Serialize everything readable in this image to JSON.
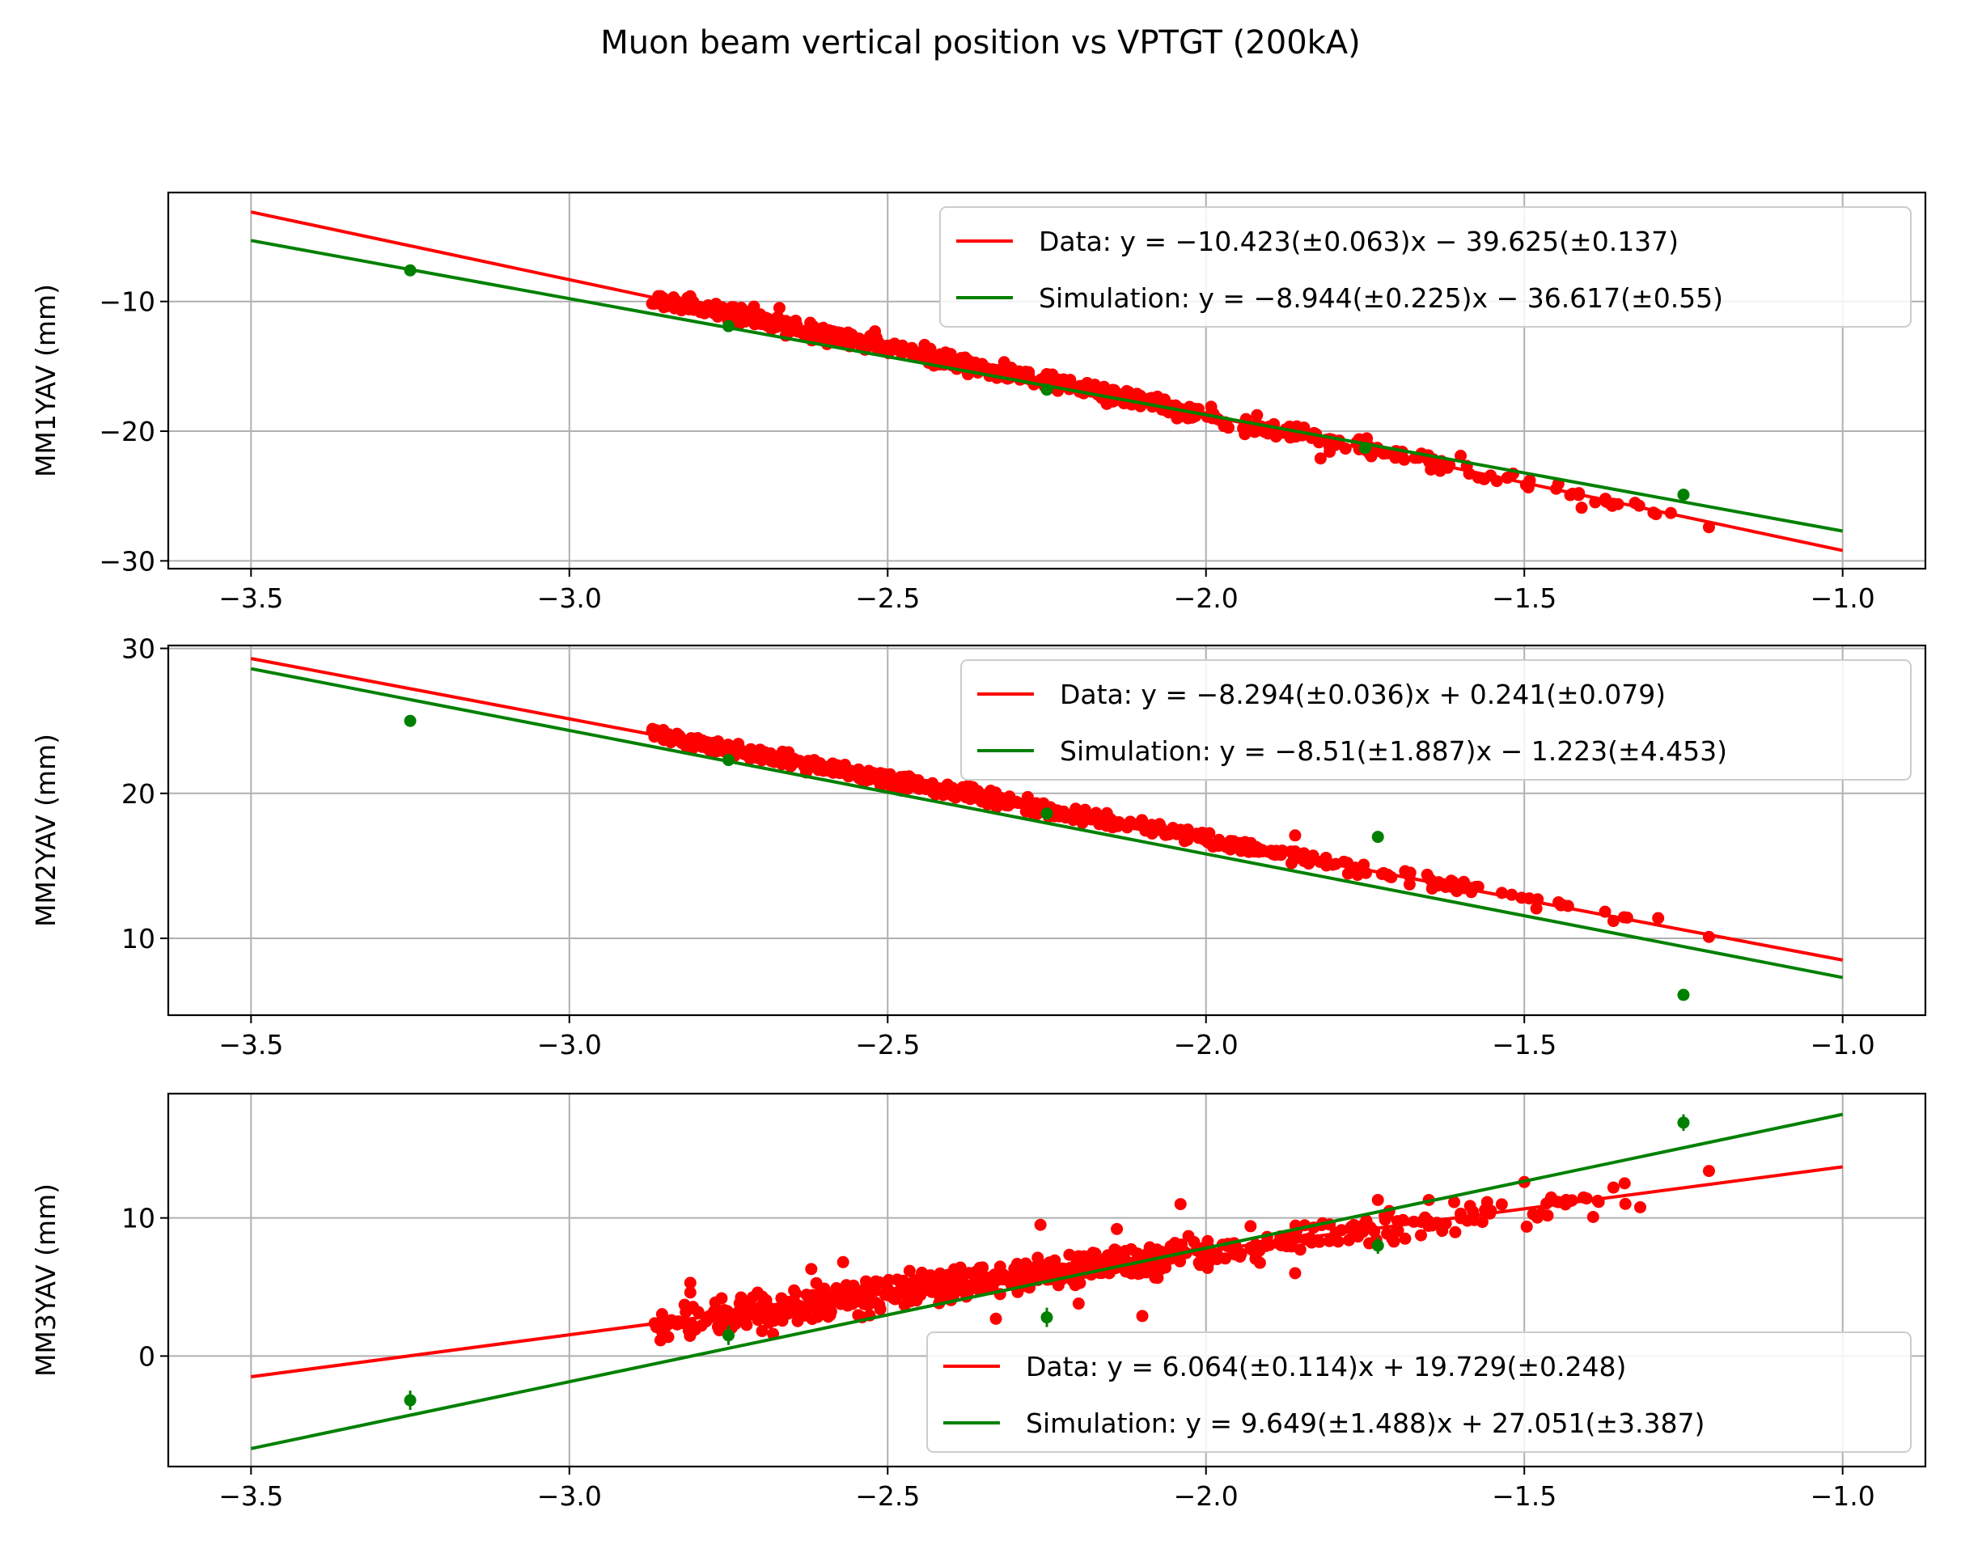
{
  "chart_data": {
    "type": "scatter",
    "title": "Muon beam vertical position vs VPTGT (200kA)",
    "colors": {
      "data": "#ff0000",
      "simulation": "#008000",
      "grid": "#b0b0b0",
      "axes": "#000000"
    },
    "subplots": [
      {
        "ylabel": "MM1YAV (mm)",
        "xlim": [
          -3.63,
          -0.87
        ],
        "ylim": [
          -30.6,
          -1.6
        ],
        "xticks": [
          -3.5,
          -3.0,
          -2.5,
          -2.0,
          -1.5,
          -1.0
        ],
        "xtick_labels": [
          "−3.5",
          "−3.0",
          "−2.5",
          "−2.0",
          "−1.5",
          "−1.0"
        ],
        "yticks": [
          -30,
          -20,
          -10
        ],
        "ytick_labels": [
          "−30",
          "−20",
          "−10"
        ],
        "legend_loc": "upper right",
        "fit_lines": [
          {
            "name": "data",
            "label": "Data: y = −10.423(±0.063)x − 39.625(±0.137)",
            "x": [
              -3.5,
              -1.0
            ],
            "y": [
              -3.1,
              -29.2
            ]
          },
          {
            "name": "simulation",
            "label": "Simulation: y = −8.944(±0.225)x  −  36.617(±0.55)",
            "x": [
              -3.5,
              -1.0
            ],
            "y": [
              -5.3,
              -27.7
            ]
          }
        ],
        "data_trend": {
          "x_range": [
            -2.87,
            -1.2
          ],
          "slope": -10.423,
          "intercept": -39.625,
          "scatter": 0.55,
          "n": 560,
          "seed": 11
        },
        "data_outliers": [
          {
            "x": -2.81,
            "y": -9.6
          },
          {
            "x": -2.67,
            "y": -10.5
          },
          {
            "x": -2.71,
            "y": -10.4
          },
          {
            "x": -2.52,
            "y": -12.3
          },
          {
            "x": -2.25,
            "y": -15.6
          },
          {
            "x": -1.99,
            "y": -19.0
          },
          {
            "x": -1.6,
            "y": -21.9
          },
          {
            "x": -1.41,
            "y": -25.9
          },
          {
            "x": -1.36,
            "y": -25.6
          },
          {
            "x": -1.21,
            "y": -27.4
          },
          {
            "x": -1.82,
            "y": -22.1
          }
        ],
        "sim_points": [
          {
            "x": -3.25,
            "y": -7.6,
            "err": 0.25
          },
          {
            "x": -2.75,
            "y": -11.9,
            "err": 0.25
          },
          {
            "x": -2.25,
            "y": -16.8,
            "err": 0.25
          },
          {
            "x": -1.75,
            "y": -21.3,
            "err": 0.25
          },
          {
            "x": -1.25,
            "y": -24.9,
            "err": 0.25
          }
        ]
      },
      {
        "ylabel": "MM2YAV (mm)",
        "xlim": [
          -3.63,
          -0.87
        ],
        "ylim": [
          4.7,
          30.2
        ],
        "xticks": [
          -3.5,
          -3.0,
          -2.5,
          -2.0,
          -1.5,
          -1.0
        ],
        "xtick_labels": [
          "−3.5",
          "−3.0",
          "−2.5",
          "−2.0",
          "−1.5",
          "−1.0"
        ],
        "yticks": [
          10,
          20,
          30
        ],
        "ytick_labels": [
          "10",
          "20",
          "30"
        ],
        "legend_loc": "upper right",
        "fit_lines": [
          {
            "name": "data",
            "label": "Data: y = −8.294(±0.036)x + 0.241(±0.079)",
            "x": [
              -3.5,
              -1.0
            ],
            "y": [
              29.3,
              8.5
            ]
          },
          {
            "name": "simulation",
            "label": "Simulation: y = −8.51(±1.887)x  −  1.223(±4.453)",
            "x": [
              -3.5,
              -1.0
            ],
            "y": [
              28.6,
              7.3
            ]
          }
        ],
        "data_trend": {
          "x_range": [
            -2.87,
            -1.2
          ],
          "slope": -8.294,
          "intercept": 0.241,
          "scatter": 0.4,
          "n": 560,
          "seed": 23
        },
        "data_outliers": [
          {
            "x": -2.87,
            "y": 24.3
          },
          {
            "x": -2.7,
            "y": 23.0
          },
          {
            "x": -1.86,
            "y": 17.1
          },
          {
            "x": -1.36,
            "y": 11.2
          },
          {
            "x": -1.21,
            "y": 10.1
          },
          {
            "x": -1.44,
            "y": 12.3
          }
        ],
        "sim_points": [
          {
            "x": -3.25,
            "y": 25.0,
            "err": 0.25
          },
          {
            "x": -2.75,
            "y": 22.3,
            "err": 0.25
          },
          {
            "x": -2.25,
            "y": 18.6,
            "err": 0.25
          },
          {
            "x": -1.73,
            "y": 17.0,
            "err": 0.25
          },
          {
            "x": -1.25,
            "y": 6.1,
            "err": 0.25
          }
        ]
      },
      {
        "ylabel": "MM3YAV (mm)",
        "xlim": [
          -3.63,
          -0.87
        ],
        "ylim": [
          -8.0,
          19.0
        ],
        "xticks": [
          -3.5,
          -3.0,
          -2.5,
          -2.0,
          -1.5,
          -1.0
        ],
        "xtick_labels": [
          "−3.5",
          "−3.0",
          "−2.5",
          "−2.0",
          "−1.5",
          "−1.0"
        ],
        "yticks": [
          0,
          10
        ],
        "ytick_labels": [
          "0",
          "10"
        ],
        "legend_loc": "lower right",
        "fit_lines": [
          {
            "name": "data",
            "label": "Data: y = 6.064(±0.114)x + 19.729(±0.248)",
            "x": [
              -3.5,
              -1.0
            ],
            "y": [
              -1.5,
              13.7
            ]
          },
          {
            "name": "simulation",
            "label": "Simulation: y = 9.649(±1.488)x  +  27.051(±3.387)",
            "x": [
              -3.5,
              -1.0
            ],
            "y": [
              -6.7,
              17.5
            ]
          }
        ],
        "data_trend": {
          "x_range": [
            -2.87,
            -1.2
          ],
          "slope": 6.064,
          "intercept": 19.729,
          "scatter": 1.0,
          "n": 620,
          "seed": 37
        },
        "data_outliers": [
          {
            "x": -2.81,
            "y": 5.3
          },
          {
            "x": -2.81,
            "y": 4.6
          },
          {
            "x": -2.57,
            "y": 6.8
          },
          {
            "x": -2.62,
            "y": 6.3
          },
          {
            "x": -2.68,
            "y": 1.6
          },
          {
            "x": -2.33,
            "y": 2.7
          },
          {
            "x": -2.1,
            "y": 2.9
          },
          {
            "x": -2.14,
            "y": 9.2
          },
          {
            "x": -2.04,
            "y": 11.0
          },
          {
            "x": -1.86,
            "y": 6.0
          },
          {
            "x": -1.73,
            "y": 11.3
          },
          {
            "x": -1.65,
            "y": 11.3
          },
          {
            "x": -1.36,
            "y": 12.2
          },
          {
            "x": -1.21,
            "y": 13.4
          },
          {
            "x": -1.5,
            "y": 12.6
          },
          {
            "x": -2.26,
            "y": 9.5
          },
          {
            "x": -2.2,
            "y": 3.8
          },
          {
            "x": -1.93,
            "y": 9.4
          }
        ],
        "sim_points": [
          {
            "x": -3.25,
            "y": -3.2,
            "err": 0.7
          },
          {
            "x": -2.75,
            "y": 1.5,
            "err": 0.7
          },
          {
            "x": -2.25,
            "y": 2.8,
            "err": 0.7
          },
          {
            "x": -1.73,
            "y": 8.0,
            "err": 0.6
          },
          {
            "x": -1.25,
            "y": 16.9,
            "err": 0.6
          }
        ]
      }
    ]
  }
}
